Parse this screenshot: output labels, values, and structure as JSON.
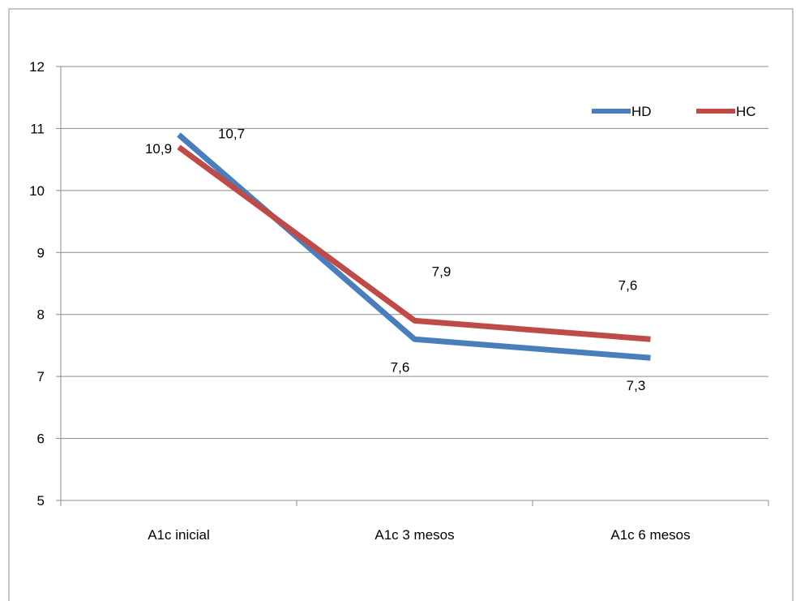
{
  "chart_data": {
    "type": "line",
    "categories": [
      "A1c  inicial",
      "A1c 3 mesos",
      "A1c 6 mesos"
    ],
    "series": [
      {
        "name": "HD",
        "color": "#4a7ebb",
        "values": [
          10.9,
          7.6,
          7.3
        ],
        "labels": [
          "10,9",
          "7,6",
          "7,3"
        ]
      },
      {
        "name": "HC",
        "color": "#be4b48",
        "values": [
          10.7,
          7.9,
          7.6
        ],
        "labels": [
          "10,7",
          "7,9",
          "7,6"
        ]
      }
    ],
    "ylim": [
      5,
      12
    ],
    "yticks": [
      "5",
      "6",
      "7",
      "8",
      "9",
      "10",
      "11",
      "12"
    ],
    "grid": true,
    "legend_position": "top-right",
    "title": "",
    "xlabel": "",
    "ylabel": ""
  }
}
